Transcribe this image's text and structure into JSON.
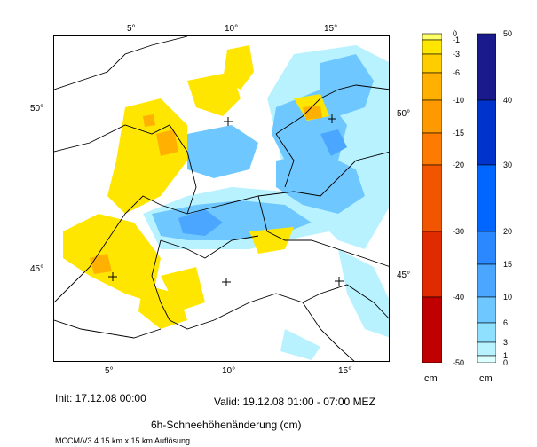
{
  "map": {
    "lon_labels_top": [
      "5°",
      "10°",
      "15°"
    ],
    "lon_labels_bottom": [
      "5°",
      "10°",
      "15°"
    ],
    "lat_labels_left": [
      "50°",
      "45°"
    ],
    "lat_labels_right": [
      "50°",
      "45°"
    ]
  },
  "colorbar_negative": {
    "unit": "cm",
    "levels": [
      {
        "label": "0",
        "color": "#ffff66"
      },
      {
        "label": "-1",
        "color": "#ffe600"
      },
      {
        "label": "-3",
        "color": "#ffcc00"
      },
      {
        "label": "-6",
        "color": "#ffb000"
      },
      {
        "label": "-10",
        "color": "#ff9900"
      },
      {
        "label": "-15",
        "color": "#ff7a00"
      },
      {
        "label": "-20",
        "color": "#f25500"
      },
      {
        "label": "-30",
        "color": "#e02a00"
      },
      {
        "label": "-40",
        "color": "#c00000"
      },
      {
        "label": "-50",
        "color": ""
      }
    ]
  },
  "colorbar_positive": {
    "unit": "cm",
    "levels": [
      {
        "label": "50",
        "color": ""
      },
      {
        "label": "40",
        "color": "#1a1a8c"
      },
      {
        "label": "30",
        "color": "#0033cc"
      },
      {
        "label": "20",
        "color": "#0066ff"
      },
      {
        "label": "15",
        "color": "#2b88ff"
      },
      {
        "label": "10",
        "color": "#4aa6ff"
      },
      {
        "label": "6",
        "color": "#6ec8ff"
      },
      {
        "label": "3",
        "color": "#8fe0ff"
      },
      {
        "label": "1",
        "color": "#b8f2ff"
      },
      {
        "label": "0",
        "color": "#dcffff"
      }
    ]
  },
  "init_text": "Init: 17.12.08 00:00",
  "valid_text": "Valid: 19.12.08 01:00 - 07:00 MEZ",
  "title": "6h-Schneehöhenänderung (cm)",
  "footer": "MCCM/V3.4 15 km x 15 km Auflösung"
}
